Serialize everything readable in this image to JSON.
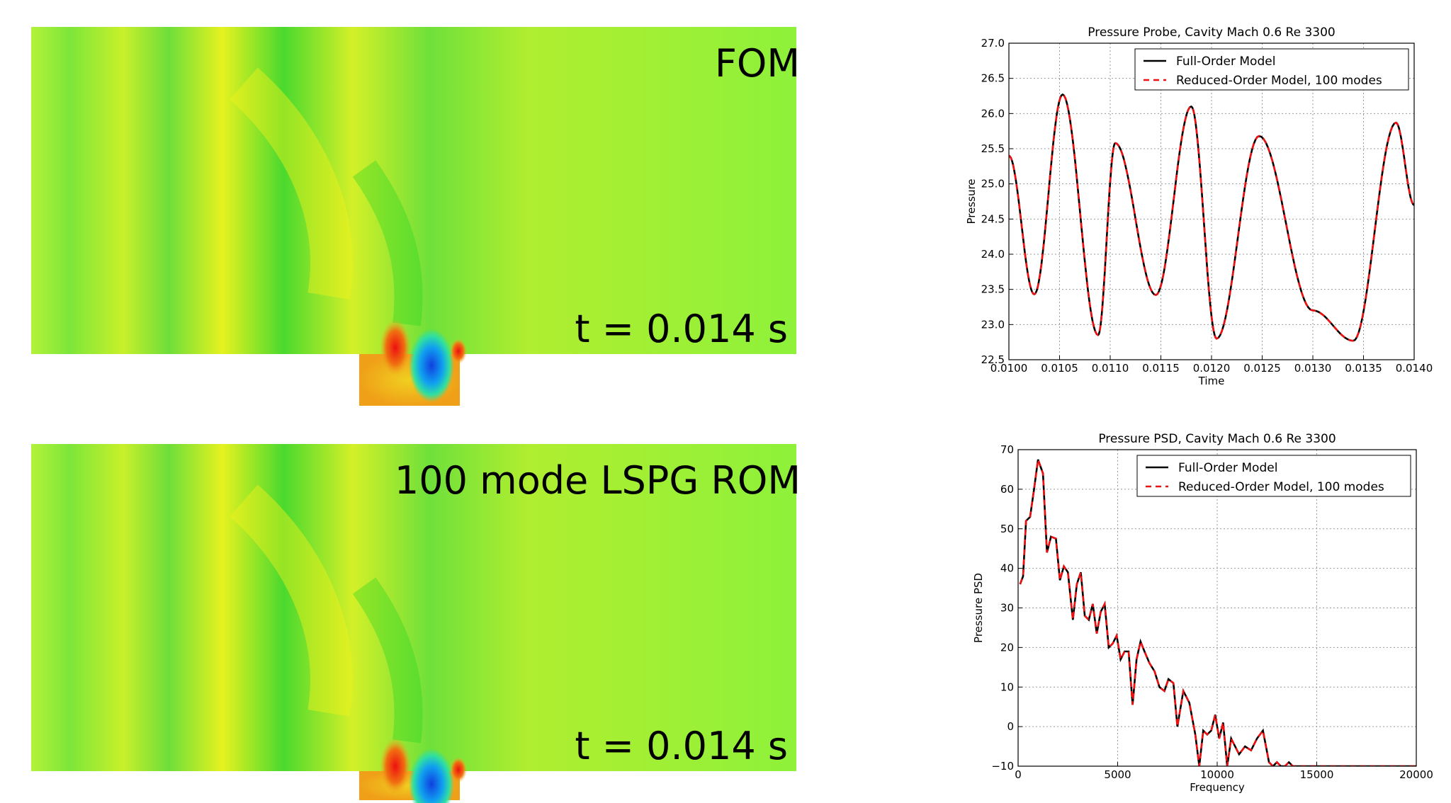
{
  "panels": [
    {
      "label": "FOM",
      "time_label": "t = 0.014 s"
    },
    {
      "label": "100 mode LSPG ROM",
      "time_label": "t = 0.014 s"
    }
  ],
  "field_colors": {
    "base": "#8ef13a",
    "yellow": "#f2f21a",
    "green": "#22d422",
    "orange": "#f0b020",
    "red": "#ee1010",
    "blue": "#1060f0"
  },
  "chart_data": [
    {
      "type": "line",
      "title": "Pressure Probe, Cavity Mach 0.6 Re 3300",
      "xlabel": "Time",
      "ylabel": "Pressure",
      "xlim": [
        0.01,
        0.014
      ],
      "ylim": [
        22.5,
        27.0
      ],
      "xticks": [
        "0.0100",
        "0.0105",
        "0.0110",
        "0.0115",
        "0.0120",
        "0.0125",
        "0.0130",
        "0.0135",
        "0.0140"
      ],
      "yticks": [
        "22.5",
        "23.0",
        "23.5",
        "24.0",
        "24.5",
        "25.0",
        "25.5",
        "26.0",
        "26.5",
        "27.0"
      ],
      "grid": true,
      "legend_position": "top-right",
      "series": [
        {
          "name": "Full-Order Model",
          "color": "#000000",
          "dash": "solid",
          "x": [
            0.01,
            0.01025,
            0.01053,
            0.01088,
            0.01105,
            0.01145,
            0.0118,
            0.01205,
            0.01247,
            0.013,
            0.0134,
            0.01382,
            0.014
          ],
          "y": [
            25.4,
            23.43,
            26.27,
            22.85,
            25.58,
            23.42,
            26.1,
            22.8,
            25.68,
            23.2,
            22.77,
            25.87,
            24.7
          ]
        },
        {
          "name": "Reduced-Order Model, 100 modes",
          "color": "#ee1111",
          "dash": "dashed",
          "x": [
            0.01,
            0.01025,
            0.01053,
            0.01088,
            0.01105,
            0.01145,
            0.0118,
            0.01205,
            0.01247,
            0.013,
            0.0134,
            0.01382,
            0.014
          ],
          "y": [
            25.4,
            23.43,
            26.27,
            22.85,
            25.58,
            23.42,
            26.1,
            22.8,
            25.68,
            23.2,
            22.77,
            25.87,
            24.7
          ]
        }
      ]
    },
    {
      "type": "line",
      "title": "Pressure PSD, Cavity Mach 0.6 Re 3300",
      "xlabel": "Frequency",
      "ylabel": "Pressure PSD",
      "xlim": [
        0,
        20000
      ],
      "ylim": [
        -10,
        70
      ],
      "xticks": [
        "0",
        "5000",
        "10000",
        "15000",
        "20000"
      ],
      "yticks": [
        "-10",
        "0",
        "10",
        "20",
        "30",
        "40",
        "50",
        "60",
        "70"
      ],
      "grid": true,
      "legend_position": "top-right",
      "series": [
        {
          "name": "Full-Order Model",
          "color": "#000000",
          "dash": "solid",
          "x": [
            100,
            250,
            400,
            600,
            800,
            1000,
            1250,
            1450,
            1650,
            1900,
            2100,
            2300,
            2500,
            2750,
            2950,
            3150,
            3350,
            3550,
            3750,
            3950,
            4150,
            4350,
            4550,
            4750,
            4950,
            5150,
            5350,
            5550,
            5750,
            5950,
            6150,
            6350,
            6600,
            6850,
            7100,
            7350,
            7550,
            7800,
            8000,
            8300,
            8600,
            8900,
            9100,
            9300,
            9500,
            9700,
            9900,
            10100,
            10300,
            10500,
            10700,
            10900,
            11100,
            11400,
            11700,
            12000,
            12300,
            12600,
            12800,
            13000,
            13200,
            13400,
            13600,
            13800,
            14000,
            14300,
            14600,
            14900,
            15200,
            15500,
            15900,
            16300,
            16700,
            17100,
            17500,
            18000,
            19000,
            20000
          ],
          "y": [
            36,
            38,
            52,
            53,
            60,
            67.5,
            64,
            44,
            48,
            47.5,
            37,
            40.5,
            39,
            27,
            36,
            39,
            28,
            27,
            31,
            23.5,
            29,
            31,
            20,
            21,
            23,
            17,
            19,
            19,
            5.5,
            17,
            21.5,
            19,
            16,
            14,
            10,
            9,
            12,
            11,
            0,
            9,
            6,
            -2,
            -10,
            -1,
            -2,
            -1,
            3,
            -3,
            1,
            -10,
            -3,
            -5,
            -7,
            -5,
            -6,
            -3,
            -1,
            -9,
            -10,
            -9,
            -10,
            -10,
            -9,
            -10,
            -10,
            -10,
            -10,
            -10,
            -10,
            -10,
            -10,
            -10,
            -10,
            -10,
            -10,
            -10,
            -10,
            -10
          ]
        },
        {
          "name": "Reduced-Order Model, 100 modes",
          "color": "#ee1111",
          "dash": "dashed",
          "x": [
            100,
            250,
            400,
            600,
            800,
            1000,
            1250,
            1450,
            1650,
            1900,
            2100,
            2300,
            2500,
            2750,
            2950,
            3150,
            3350,
            3550,
            3750,
            3950,
            4150,
            4350,
            4550,
            4750,
            4950,
            5150,
            5350,
            5550,
            5750,
            5950,
            6150,
            6350,
            6600,
            6850,
            7100,
            7350,
            7550,
            7800,
            8000,
            8300,
            8600,
            8900,
            9100,
            9300,
            9500,
            9700,
            9900,
            10100,
            10300,
            10500,
            10700,
            10900,
            11100,
            11400,
            11700,
            12000,
            12300,
            12600,
            12800,
            13000,
            13200,
            13400,
            13600,
            13800,
            14000,
            14300,
            14600,
            14900,
            15200,
            15500,
            15900,
            16300,
            16700,
            17100,
            17500,
            18000,
            19000,
            20000
          ],
          "y": [
            36,
            38,
            52,
            53,
            60,
            67.5,
            64,
            44,
            48,
            47.5,
            37,
            40.5,
            39,
            27,
            36,
            39,
            28,
            27,
            31,
            23.5,
            29,
            31,
            20,
            21,
            23,
            17,
            19,
            19,
            5.5,
            17,
            21.5,
            19,
            16,
            14,
            10,
            9,
            12,
            11,
            0,
            9,
            6,
            -2,
            -10,
            -1,
            -2,
            -1,
            3,
            -3,
            1,
            -10,
            -3,
            -5,
            -7,
            -5,
            -6,
            -3,
            -1,
            -9,
            -10,
            -9,
            -10,
            -10,
            -9,
            -10,
            -10,
            -10,
            -10,
            -10,
            -10,
            -10,
            -10,
            -10,
            -10,
            -10,
            -10,
            -10,
            -10,
            -10
          ]
        }
      ]
    }
  ]
}
